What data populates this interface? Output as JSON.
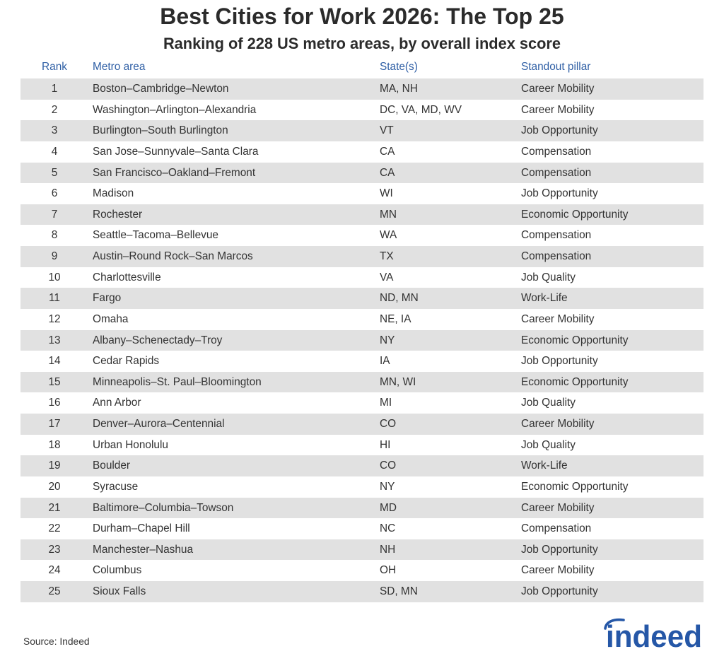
{
  "chart_data": {
    "type": "table",
    "title": "Best Cities for Work 2026: The Top 25",
    "subtitle": "Ranking of 228 US metro areas, by overall index score",
    "columns": [
      "Rank",
      "Metro area",
      "State(s)",
      "Standout pillar"
    ],
    "rows": [
      [
        1,
        "Boston–Cambridge–Newton",
        "MA, NH",
        "Career Mobility"
      ],
      [
        2,
        "Washington–Arlington–Alexandria",
        "DC, VA, MD, WV",
        "Career Mobility"
      ],
      [
        3,
        "Burlington–South Burlington",
        "VT",
        "Job Opportunity"
      ],
      [
        4,
        "San Jose–Sunnyvale–Santa Clara",
        "CA",
        "Compensation"
      ],
      [
        5,
        "San Francisco–Oakland–Fremont",
        "CA",
        "Compensation"
      ],
      [
        6,
        "Madison",
        "WI",
        "Job Opportunity"
      ],
      [
        7,
        "Rochester",
        "MN",
        "Economic Opportunity"
      ],
      [
        8,
        "Seattle–Tacoma–Bellevue",
        "WA",
        "Compensation"
      ],
      [
        9,
        "Austin–Round Rock–San Marcos",
        "TX",
        "Compensation"
      ],
      [
        10,
        "Charlottesville",
        "VA",
        "Job Quality"
      ],
      [
        11,
        "Fargo",
        "ND, MN",
        "Work-Life"
      ],
      [
        12,
        "Omaha",
        "NE, IA",
        "Career Mobility"
      ],
      [
        13,
        "Albany–Schenectady–Troy",
        "NY",
        "Economic Opportunity"
      ],
      [
        14,
        "Cedar Rapids",
        "IA",
        "Job Opportunity"
      ],
      [
        15,
        "Minneapolis–St. Paul–Bloomington",
        "MN, WI",
        "Economic Opportunity"
      ],
      [
        16,
        "Ann Arbor",
        "MI",
        "Job Quality"
      ],
      [
        17,
        "Denver–Aurora–Centennial",
        "CO",
        "Career Mobility"
      ],
      [
        18,
        "Urban Honolulu",
        "HI",
        "Job Quality"
      ],
      [
        19,
        "Boulder",
        "CO",
        "Work-Life"
      ],
      [
        20,
        "Syracuse",
        "NY",
        "Economic Opportunity"
      ],
      [
        21,
        "Baltimore–Columbia–Towson",
        "MD",
        "Career Mobility"
      ],
      [
        22,
        "Durham–Chapel Hill",
        "NC",
        "Compensation"
      ],
      [
        23,
        "Manchester–Nashua",
        "NH",
        "Job Opportunity"
      ],
      [
        24,
        "Columbus",
        "OH",
        "Career Mobility"
      ],
      [
        25,
        "Sioux Falls",
        "SD, MN",
        "Job Opportunity"
      ]
    ],
    "source": "Source: Indeed"
  },
  "logo": {
    "text": "indeed"
  },
  "colors": {
    "title": "#2b2b2b",
    "header_text": "#2f5fa5",
    "row_band": "#e1e1e1",
    "body_text": "#333333",
    "logo": "#2557a7"
  }
}
